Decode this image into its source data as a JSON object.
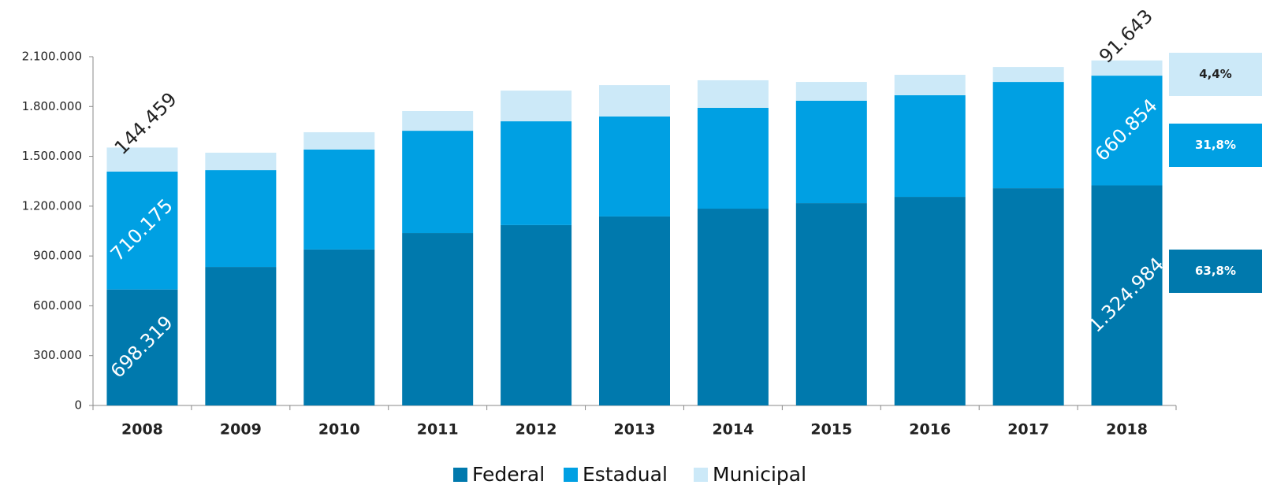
{
  "chart_data": {
    "type": "stacked_bar",
    "categories": [
      "2008",
      "2009",
      "2010",
      "2011",
      "2012",
      "2013",
      "2014",
      "2015",
      "2016",
      "2017",
      "2018"
    ],
    "series": [
      {
        "name": "Federal",
        "color": "#0079ad",
        "label_color": "#ffffff",
        "values": [
          698319,
          834000,
          939000,
          1038000,
          1086000,
          1138000,
          1185000,
          1218000,
          1256000,
          1308000,
          1324984
        ],
        "value_labels": [
          "698.319",
          null,
          null,
          null,
          null,
          null,
          null,
          null,
          null,
          null,
          "1.324.984"
        ],
        "share_label": "63,8%"
      },
      {
        "name": "Estadual",
        "color": "#00a0e3",
        "label_color": "#ffffff",
        "values": [
          710175,
          583000,
          602000,
          616000,
          625000,
          602000,
          607000,
          617000,
          612000,
          640000,
          660854
        ],
        "value_labels": [
          "710.175",
          null,
          null,
          null,
          null,
          null,
          null,
          null,
          null,
          null,
          "660.854"
        ],
        "share_label": "31,8%"
      },
      {
        "name": "Municipal",
        "color": "#cce9f8",
        "label_color": "#222222",
        "values": [
          144459,
          105000,
          104000,
          119000,
          185000,
          189000,
          166000,
          113000,
          123000,
          90000,
          91643
        ],
        "value_labels": [
          "144.459",
          null,
          null,
          null,
          null,
          null,
          null,
          null,
          null,
          null,
          "91.643"
        ],
        "share_label": "4,4%"
      }
    ],
    "ylim": [
      0,
      2100000
    ],
    "yticks": [
      0,
      {
        "value": 300000,
        "label": "300.000"
      },
      {
        "value": 600000,
        "label": "600.000"
      },
      {
        "value": 900000,
        "label": "900.000"
      },
      {
        "value": 1200000,
        "label": "1.200.000"
      },
      {
        "value": 1500000,
        "label": "1.500.000"
      },
      {
        "value": 1800000,
        "label": "1.800.000"
      },
      {
        "value": 2100000,
        "label": "2.100.000"
      }
    ],
    "grid": false,
    "legend": "bottom"
  }
}
